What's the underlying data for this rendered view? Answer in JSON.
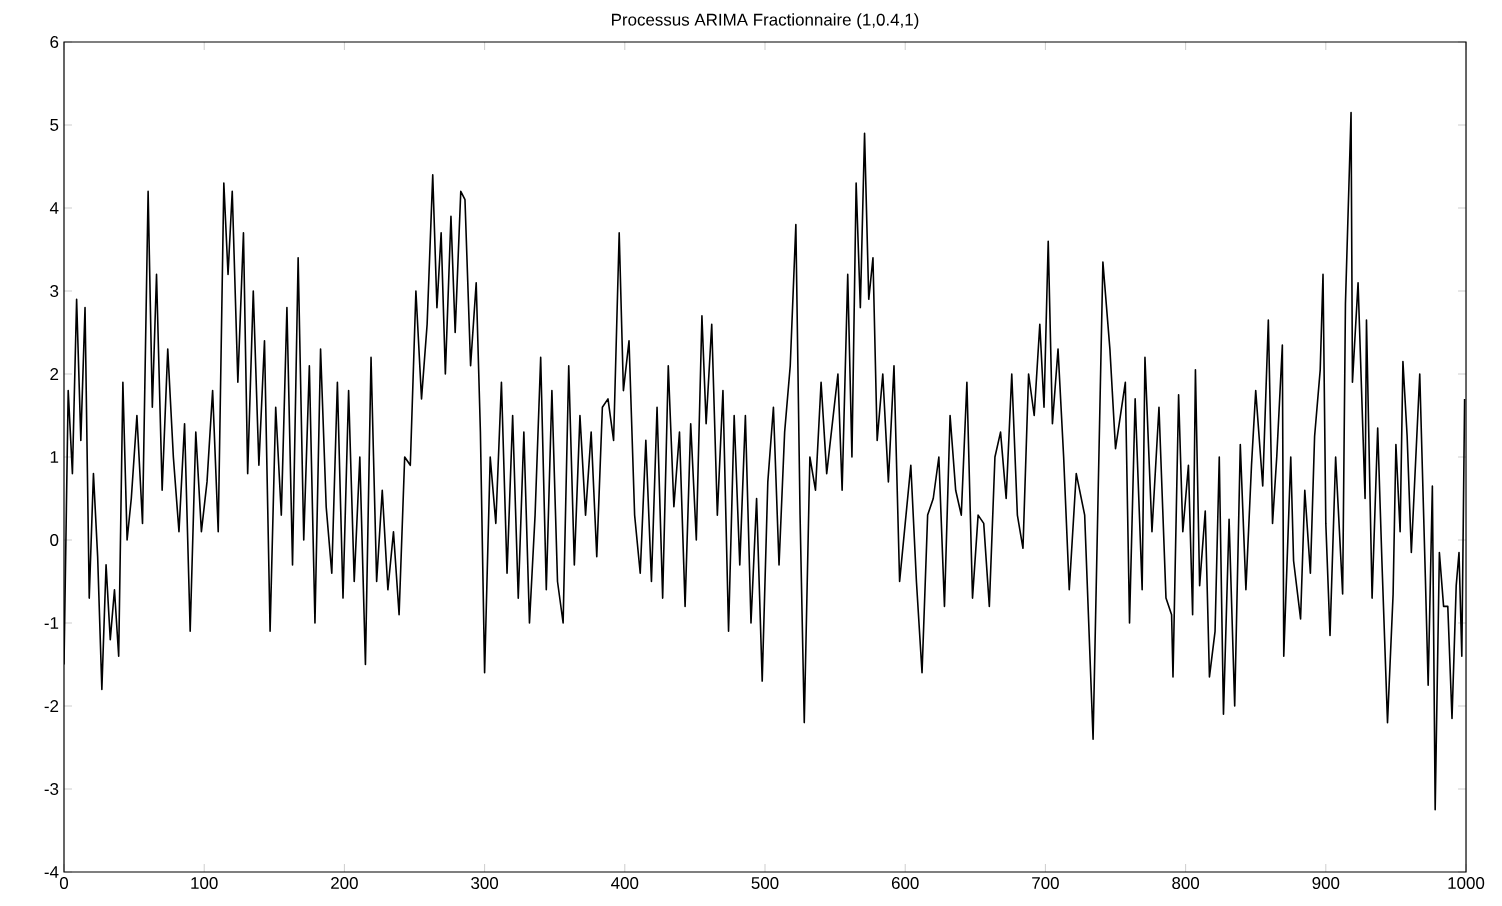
{
  "chart_data": {
    "type": "line",
    "title": "Processus ARIMA Fractionnaire (1,0.4,1)",
    "color": "#000000",
    "line_style": "solid",
    "marker": "none",
    "xlim": [
      0,
      1000
    ],
    "ylim": [
      -4,
      6
    ],
    "xticks": [
      0,
      100,
      200,
      300,
      400,
      500,
      600,
      700,
      800,
      900,
      1000
    ],
    "yticks": [
      -4,
      -3,
      -2,
      -1,
      0,
      1,
      2,
      3,
      4,
      5,
      6
    ],
    "x": [
      0,
      3,
      6,
      9,
      12,
      15,
      18,
      21,
      24,
      27,
      30,
      33,
      36,
      39,
      42,
      45,
      48,
      52,
      56,
      60,
      63,
      66,
      70,
      74,
      78,
      82,
      86,
      90,
      94,
      98,
      102,
      106,
      110,
      114,
      117,
      120,
      124,
      128,
      131,
      135,
      139,
      143,
      147,
      151,
      155,
      159,
      163,
      167,
      171,
      175,
      179,
      183,
      187,
      191,
      195,
      199,
      203,
      207,
      211,
      215,
      219,
      223,
      227,
      231,
      235,
      239,
      243,
      247,
      251,
      255,
      259,
      263,
      266,
      269,
      272,
      276,
      279,
      283,
      286,
      290,
      294,
      297,
      300,
      304,
      308,
      312,
      316,
      320,
      324,
      328,
      332,
      336,
      340,
      344,
      348,
      352,
      356,
      360,
      364,
      368,
      372,
      376,
      380,
      384,
      388,
      392,
      396,
      399,
      403,
      407,
      411,
      415,
      419,
      423,
      427,
      431,
      435,
      439,
      443,
      447,
      451,
      455,
      458,
      462,
      466,
      470,
      474,
      478,
      482,
      486,
      490,
      494,
      498,
      502,
      506,
      510,
      514,
      518,
      522,
      525,
      528,
      532,
      536,
      540,
      544,
      548,
      552,
      555,
      559,
      562,
      565,
      568,
      571,
      574,
      577,
      580,
      584,
      588,
      592,
      596,
      600,
      604,
      608,
      612,
      616,
      620,
      624,
      628,
      632,
      636,
      640,
      644,
      648,
      652,
      656,
      660,
      664,
      668,
      672,
      676,
      680,
      684,
      688,
      692,
      696,
      699,
      702,
      705,
      709,
      713,
      717,
      722,
      728,
      734,
      741,
      746,
      750,
      757,
      760,
      764,
      769,
      771,
      776,
      781,
      786,
      790,
      791,
      795,
      798,
      802,
      805,
      807,
      810,
      814,
      817,
      821,
      824,
      827,
      831,
      835,
      839,
      843,
      847,
      850,
      855,
      859,
      862,
      865,
      869,
      870,
      875,
      877,
      882,
      885,
      889,
      892,
      896,
      898,
      900,
      903,
      907,
      912,
      914,
      918,
      919,
      923,
      928,
      929,
      933,
      937,
      940,
      944,
      948,
      950,
      953,
      955,
      958,
      961,
      967,
      971,
      973,
      976,
      978,
      981,
      984,
      987,
      990,
      993,
      995,
      997,
      999
    ],
    "values": [
      -1.5,
      1.8,
      0.8,
      2.9,
      1.2,
      2.8,
      -0.7,
      0.8,
      -0.2,
      -1.8,
      -0.3,
      -1.2,
      -0.6,
      -1.4,
      1.9,
      0.0,
      0.5,
      1.5,
      0.2,
      4.2,
      1.6,
      3.2,
      0.6,
      2.3,
      1.0,
      0.1,
      1.4,
      -1.1,
      1.3,
      0.1,
      0.7,
      1.8,
      0.1,
      4.3,
      3.2,
      4.2,
      1.9,
      3.7,
      0.8,
      3.0,
      0.9,
      2.4,
      -1.1,
      1.6,
      0.3,
      2.8,
      -0.3,
      3.4,
      0.0,
      2.1,
      -1.0,
      2.3,
      0.4,
      -0.4,
      1.9,
      -0.7,
      1.8,
      -0.5,
      1.0,
      -1.5,
      2.2,
      -0.5,
      0.6,
      -0.6,
      0.1,
      -0.9,
      1.0,
      0.9,
      3.0,
      1.7,
      2.6,
      4.4,
      2.8,
      3.7,
      2.0,
      3.9,
      2.5,
      4.2,
      4.1,
      2.1,
      3.1,
      1.3,
      -1.6,
      1.0,
      0.2,
      1.9,
      -0.4,
      1.5,
      -0.7,
      1.3,
      -1.0,
      0.3,
      2.2,
      -0.6,
      1.8,
      -0.5,
      -1.0,
      2.1,
      -0.3,
      1.5,
      0.3,
      1.3,
      -0.2,
      1.6,
      1.7,
      1.2,
      3.7,
      1.8,
      2.4,
      0.3,
      -0.4,
      1.2,
      -0.5,
      1.6,
      -0.7,
      2.1,
      0.4,
      1.3,
      -0.8,
      1.4,
      0.0,
      2.7,
      1.4,
      2.6,
      0.3,
      1.8,
      -1.1,
      1.5,
      -0.3,
      1.5,
      -1.0,
      0.5,
      -1.7,
      0.7,
      1.6,
      -0.3,
      1.3,
      2.1,
      3.8,
      0.3,
      -2.2,
      1.0,
      0.6,
      1.9,
      0.8,
      1.4,
      2.0,
      0.6,
      3.2,
      1.0,
      4.3,
      2.8,
      4.9,
      2.9,
      3.4,
      1.2,
      2.0,
      0.7,
      2.1,
      -0.5,
      0.2,
      0.9,
      -0.5,
      -1.6,
      0.3,
      0.5,
      1.0,
      -0.8,
      1.5,
      0.6,
      0.3,
      1.9,
      -0.7,
      0.3,
      0.2,
      -0.8,
      1.0,
      1.3,
      0.5,
      2.0,
      0.3,
      -0.1,
      2.0,
      1.5,
      2.6,
      1.6,
      3.6,
      1.4,
      2.3,
      1.0,
      -0.6,
      0.8,
      0.3,
      -2.4,
      3.35,
      2.3,
      1.1,
      1.9,
      -1.0,
      1.7,
      -0.6,
      2.2,
      0.1,
      1.6,
      -0.7,
      -0.9,
      -1.65,
      1.75,
      0.1,
      0.9,
      -0.9,
      2.05,
      -0.55,
      0.35,
      -1.65,
      -1.1,
      1.0,
      -2.1,
      0.25,
      -2.0,
      1.15,
      -0.6,
      0.9,
      1.8,
      0.65,
      2.65,
      0.2,
      1.0,
      2.35,
      -1.4,
      1.0,
      -0.25,
      -0.95,
      0.6,
      -0.4,
      1.25,
      2.05,
      3.2,
      0.2,
      -1.15,
      1.0,
      -0.65,
      2.85,
      5.15,
      1.9,
      3.1,
      0.5,
      2.65,
      -0.7,
      1.35,
      -0.25,
      -2.2,
      -0.65,
      1.15,
      0.1,
      2.15,
      1.25,
      -0.15,
      2.0,
      -0.45,
      -1.75,
      0.65,
      -3.25,
      -0.15,
      -0.8,
      -0.8,
      -2.15,
      -0.55,
      -0.15,
      -1.4,
      1.7
    ]
  }
}
